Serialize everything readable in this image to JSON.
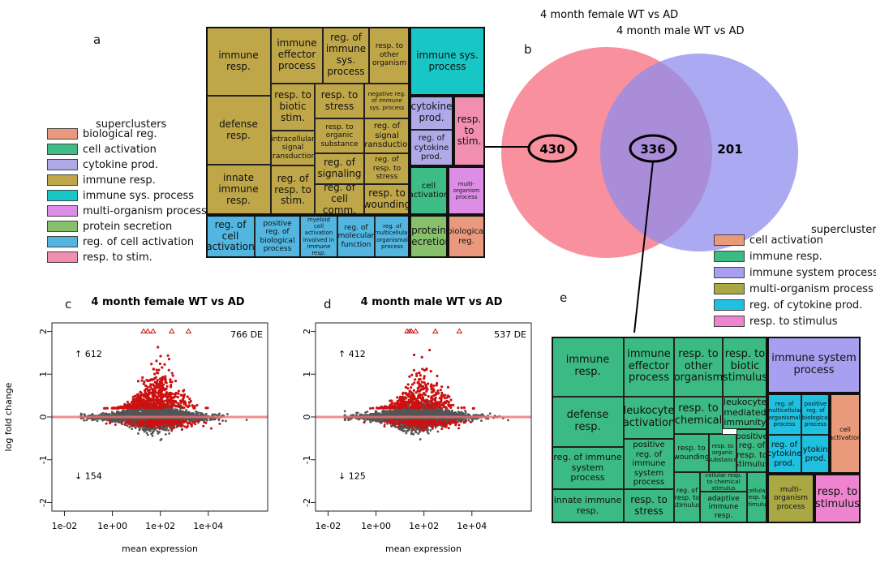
{
  "panel_labels": {
    "a": "a",
    "b": "b",
    "c": "c",
    "d": "d",
    "e": "e"
  },
  "colors": {
    "biological_reg": "#e99a7e",
    "cell_activation": "#3dbd85",
    "cytokine_prod": "#b0a9e8",
    "immune_resp": "#bfa648",
    "immune_sys_process": "#19c6c6",
    "multi_organism": "#dd8de6",
    "protein_secretion": "#86c06b",
    "reg_cell_activation": "#52b6e0",
    "resp_to_stim": "#f08fb0",
    "e_immune_resp": "#3cba83",
    "e_immune_system": "#a79ff0",
    "e_multi_organism": "#a9a845",
    "e_reg_cytokine": "#1fc0e0",
    "e_resp_stimulus": "#ee84cf",
    "e_cell_activation": "#e89a7a",
    "venn_female": "#f77c8c",
    "venn_male": "#8f8cec",
    "de_point": "#cc1111",
    "bg_point": "#555555",
    "zero_line": "#f07070"
  },
  "legend_a": {
    "title": "superclusters",
    "items": [
      "biological reg.",
      "cell activation",
      "cytokine prod.",
      "immune resp.",
      "immune sys. process",
      "multi-organism process",
      "protein secretion",
      "reg. of cell activation",
      "resp. to stim."
    ]
  },
  "treemap_a": [
    {
      "label": "immune resp.",
      "color": "immune_resp"
    },
    {
      "label": "immune effector process",
      "color": "immune_resp"
    },
    {
      "label": "reg. of immune sys. process",
      "color": "immune_resp"
    },
    {
      "label": "resp. to other organism",
      "color": "immune_resp"
    },
    {
      "label": "defense resp.",
      "color": "immune_resp"
    },
    {
      "label": "resp. to biotic stim.",
      "color": "immune_resp"
    },
    {
      "label": "resp. to stress",
      "color": "immune_resp"
    },
    {
      "label": "negative reg. of immune sys. process",
      "color": "immune_resp"
    },
    {
      "label": "intracellular signal transduction",
      "color": "immune_resp"
    },
    {
      "label": "resp. to organic substance",
      "color": "immune_resp"
    },
    {
      "label": "reg. of signal transduction",
      "color": "immune_resp"
    },
    {
      "label": "innate immune resp.",
      "color": "immune_resp"
    },
    {
      "label": "reg. of resp. to stim.",
      "color": "immune_resp"
    },
    {
      "label": "reg. of signaling",
      "color": "immune_resp"
    },
    {
      "label": "reg. of resp. to stress",
      "color": "immune_resp"
    },
    {
      "label": "reg. of cell comm.",
      "color": "immune_resp"
    },
    {
      "label": "resp. to wounding",
      "color": "immune_resp"
    },
    {
      "label": "immune sys. process",
      "color": "immune_sys_process"
    },
    {
      "label": "cytokine prod.",
      "color": "cytokine_prod"
    },
    {
      "label": "reg. of cytokine prod.",
      "color": "cytokine_prod"
    },
    {
      "label": "resp. to stim.",
      "color": "resp_to_stim"
    },
    {
      "label": "cell activation",
      "color": "cell_activation"
    },
    {
      "label": "multi-organism process",
      "color": "multi_organism"
    },
    {
      "label": "reg. of cell activation",
      "color": "reg_cell_activation"
    },
    {
      "label": "positive reg. of biological process",
      "color": "reg_cell_activation"
    },
    {
      "label": "myeloid cell activation involved in immune resp.",
      "color": "reg_cell_activation"
    },
    {
      "label": "reg. of molecular function",
      "color": "reg_cell_activation"
    },
    {
      "label": "reg. of multicellular organismal process",
      "color": "reg_cell_activation"
    },
    {
      "label": "protein secretion",
      "color": "protein_secretion"
    },
    {
      "label": "biological reg.",
      "color": "biological_reg"
    }
  ],
  "venn": {
    "label_female": "4 month female WT vs AD",
    "label_male": "4 month male WT vs AD",
    "female_only": "430",
    "shared": "336",
    "male_only": "201"
  },
  "legend_e": {
    "title": "superclusters",
    "items": [
      "cell activation",
      "immune resp.",
      "immune system process",
      "multi-organism process",
      "reg. of cytokine prod.",
      "resp. to stimulus"
    ]
  },
  "treemap_e": [
    {
      "label": "immune resp.",
      "color": "e_immune_resp"
    },
    {
      "label": "immune effector process",
      "color": "e_immune_resp"
    },
    {
      "label": "resp. to other organism",
      "color": "e_immune_resp"
    },
    {
      "label": "resp. to biotic stimulus",
      "color": "e_immune_resp"
    },
    {
      "label": "defense resp.",
      "color": "e_immune_resp"
    },
    {
      "label": "leukocyte activation",
      "color": "e_immune_resp"
    },
    {
      "label": "resp. to chemical",
      "color": "e_immune_resp"
    },
    {
      "label": "leukocyte mediated immunity",
      "color": "e_immune_resp"
    },
    {
      "label": "reg. of immune system process",
      "color": "e_immune_resp"
    },
    {
      "label": "positive reg. of immune system process",
      "color": "e_immune_resp"
    },
    {
      "label": "resp. to wounding",
      "color": "e_immune_resp"
    },
    {
      "label": "resp. to organic substance",
      "color": "e_immune_resp"
    },
    {
      "label": "positive reg. of resp. to stimulus",
      "color": "e_immune_resp"
    },
    {
      "label": "innate immune resp.",
      "color": "e_immune_resp"
    },
    {
      "label": "resp. to stress",
      "color": "e_immune_resp"
    },
    {
      "label": "reg. of resp. to stimulus",
      "color": "e_immune_resp"
    },
    {
      "label": "cellular resp. to chemical stimulus",
      "color": "e_immune_resp"
    },
    {
      "label": "adaptive immune resp.",
      "color": "e_immune_resp"
    },
    {
      "label": "cellular resp. to stimulus",
      "color": "e_immune_resp"
    },
    {
      "label": "immune system process",
      "color": "e_immune_system"
    },
    {
      "label": "reg. of multicellular organismal process",
      "color": "e_reg_cytokine"
    },
    {
      "label": "positive reg. of biological process",
      "color": "e_reg_cytokine"
    },
    {
      "label": "reg. of cytokine prod.",
      "color": "e_reg_cytokine"
    },
    {
      "label": "cytokine prod.",
      "color": "e_reg_cytokine"
    },
    {
      "label": "cell activation",
      "color": "e_cell_activation"
    },
    {
      "label": "multi-organism process",
      "color": "e_multi_organism"
    },
    {
      "label": "resp. to stimulus",
      "color": "e_resp_stimulus"
    }
  ],
  "chart_data": [
    {
      "type": "scatter",
      "title": "4 month female WT vs AD",
      "xlabel": "mean expression",
      "ylabel": "log fold change",
      "xscale": "log10",
      "xlim": [
        0.003,
        3000000
      ],
      "ylim": [
        -2.2,
        2.2
      ],
      "x_ticks": [
        0.01,
        1,
        100,
        10000
      ],
      "x_tick_labels": [
        "1e-02",
        "1e+00",
        "1e+02",
        "1e+04"
      ],
      "y_ticks": [
        -2,
        -1,
        0,
        1,
        2
      ],
      "y_tick_labels": [
        "-2",
        "-1",
        "0",
        "1",
        "2"
      ],
      "annotation_total": "766 DE",
      "annotation_up": "↑ 612",
      "annotation_down": "↓ 154",
      "de_genes": 766,
      "up": 612,
      "down": 154,
      "capped_points_x": [
        20,
        30,
        50,
        300,
        1500
      ]
    },
    {
      "type": "scatter",
      "title": "4 month male WT vs AD",
      "xlabel": "mean expression",
      "ylabel": "",
      "xscale": "log10",
      "xlim": [
        0.003,
        3000000
      ],
      "ylim": [
        -2.2,
        2.2
      ],
      "x_ticks": [
        0.01,
        1,
        100,
        10000
      ],
      "x_tick_labels": [
        "1e-02",
        "1e+00",
        "1e+02",
        "1e+04"
      ],
      "y_ticks": [
        -2,
        -1,
        0,
        1,
        2
      ],
      "y_tick_labels": [
        "-2",
        "-1",
        "0",
        "1",
        "2"
      ],
      "annotation_total": "537 DE",
      "annotation_up": "↑ 412",
      "annotation_down": "↓ 125",
      "de_genes": 537,
      "up": 412,
      "down": 125,
      "capped_points_x": [
        20,
        25,
        30,
        45,
        300,
        3000
      ]
    }
  ]
}
